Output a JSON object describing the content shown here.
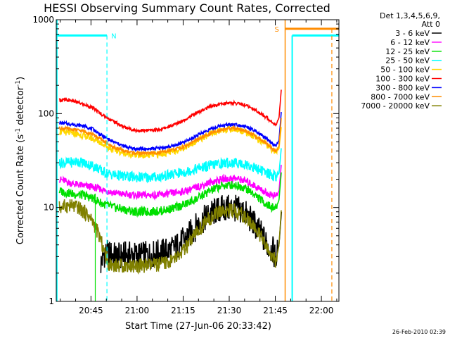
{
  "chart_data": {
    "type": "line",
    "title": "HESSI Observing Summary Count Rates, Corrected",
    "xlabel": "Start Time (27-Jun-06 20:33:42)",
    "ylabel_prefix": "Corrected Count Rate (s",
    "ylabel_mid": " detector",
    "ylabel_suffix": ")",
    "ylabel_exp": "-1",
    "x_axis": {
      "unit": "minutes after 20:33:42",
      "range": [
        0,
        92.0
      ]
    },
    "y_axis": {
      "scale": "log",
      "range": [
        1,
        1000
      ]
    },
    "x_ticks": [
      {
        "label": "20:45",
        "x": 11.3
      },
      {
        "label": "21:00",
        "x": 26.3
      },
      {
        "label": "21:15",
        "x": 41.3
      },
      {
        "label": "21:30",
        "x": 56.3
      },
      {
        "label": "21:45",
        "x": 71.3
      },
      {
        "label": "22:00",
        "x": 86.3
      }
    ],
    "y_ticks": [
      {
        "label": "1",
        "y": 1
      },
      {
        "label": "10",
        "y": 10
      },
      {
        "label": "100",
        "y": 100
      },
      {
        "label": "1000",
        "y": 1000
      }
    ],
    "legend_header": [
      "Det 1,3,4,5,6,9,",
      "Att 0"
    ],
    "series": [
      {
        "name": "3 - 6 keV",
        "color": "#000000",
        "x": [
          14.5,
          15.5,
          17,
          20,
          23,
          26,
          30,
          34,
          38,
          42,
          46,
          50,
          54,
          58,
          61,
          64,
          67,
          69,
          70.5,
          71.5,
          72.5,
          73.3
        ],
        "y": [
          2.5,
          3.2,
          3.2,
          3.0,
          3.1,
          3.1,
          3.1,
          3.3,
          3.6,
          4.6,
          6.5,
          8.5,
          9.7,
          9.8,
          9.0,
          7.0,
          5.0,
          3.8,
          3.5,
          2.8,
          4.0,
          9.0
        ]
      },
      {
        "name": "6 - 12 keV",
        "color": "#ff00ff",
        "x": [
          1,
          5,
          9,
          12,
          15,
          18,
          22,
          26,
          30,
          34,
          38,
          42,
          46,
          50,
          54,
          58,
          61,
          64,
          67,
          69,
          70.5,
          71.5,
          72.5,
          73.3
        ],
        "y": [
          20,
          18,
          17,
          16.5,
          15.5,
          14.5,
          13.8,
          13.5,
          13.5,
          13.7,
          14.2,
          15,
          16.5,
          18.5,
          20,
          20.5,
          19.5,
          17.5,
          15.2,
          14,
          13.5,
          13.2,
          15,
          30
        ]
      },
      {
        "name": "12 - 25 keV",
        "color": "#00e000",
        "x": [
          1,
          5,
          9,
          12,
          15,
          18,
          22,
          26,
          30,
          34,
          38,
          42,
          46,
          50,
          54,
          58,
          61,
          64,
          67,
          69,
          70.5,
          71.5,
          72.5,
          73.3
        ],
        "y": [
          15,
          14,
          13.5,
          12.5,
          11.0,
          10.2,
          9.5,
          9.0,
          9.0,
          9.2,
          9.8,
          10.8,
          12.5,
          15,
          17,
          17.5,
          16.5,
          14.2,
          11.8,
          10.5,
          10.0,
          9.8,
          12,
          25
        ]
      },
      {
        "name": "25 - 50 keV",
        "color": "#00ffff",
        "x": [
          1,
          4,
          7,
          10,
          13,
          15,
          18,
          22,
          26,
          30,
          34,
          38,
          42,
          46,
          50,
          54,
          58,
          61,
          64,
          67,
          69,
          70.5,
          71.5,
          72.5,
          73.3
        ],
        "y": [
          30,
          30,
          31,
          29,
          27,
          24,
          22.5,
          21.5,
          21,
          21,
          21.3,
          22.5,
          24,
          26,
          28,
          29.5,
          30,
          29,
          27,
          24.5,
          23,
          22,
          21.5,
          23,
          45
        ]
      },
      {
        "name": "50 - 100 keV",
        "color": "#ffd700",
        "x": [
          1,
          5,
          9,
          12,
          15,
          18,
          22,
          26,
          30,
          34,
          38,
          42,
          46,
          50,
          54,
          58,
          61,
          64,
          67,
          69,
          70.5,
          71.5,
          72.5,
          73.3
        ],
        "y": [
          64,
          62,
          58,
          54,
          48,
          42,
          38,
          36,
          36,
          37,
          39.5,
          44,
          52,
          60,
          67,
          68,
          65,
          58,
          50,
          45,
          41,
          39.5,
          42,
          75
        ]
      },
      {
        "name": "100 - 300 keV",
        "color": "#ff0000",
        "x": [
          1,
          5,
          9,
          12,
          15,
          18,
          22,
          26,
          30,
          34,
          38,
          42,
          46,
          50,
          54,
          58,
          61,
          64,
          67,
          69,
          70.5,
          71.5,
          72.5,
          73.3
        ],
        "y": [
          140,
          138,
          125,
          115,
          97,
          85,
          72,
          66,
          66,
          68,
          75,
          87,
          103,
          118,
          128,
          130,
          125,
          113,
          98,
          88,
          80,
          76,
          90,
          190
        ]
      },
      {
        "name": "300 - 800 keV",
        "color": "#0000ff",
        "x": [
          1,
          5,
          9,
          12,
          15,
          18,
          22,
          26,
          30,
          34,
          38,
          42,
          46,
          50,
          54,
          58,
          61,
          64,
          67,
          69,
          70.5,
          71.5,
          72.5,
          73.3
        ],
        "y": [
          80,
          77,
          74,
          68,
          58,
          51,
          45,
          42,
          42,
          43,
          45,
          50,
          59,
          68,
          75,
          77,
          74,
          67,
          58,
          52,
          47,
          45,
          52,
          110
        ]
      },
      {
        "name": "800 - 7000 keV",
        "color": "#ff8c00",
        "x": [
          1,
          5,
          9,
          12,
          15,
          18,
          22,
          26,
          30,
          34,
          38,
          42,
          46,
          50,
          54,
          58,
          61,
          64,
          67,
          69,
          70.5,
          71.5,
          72.5,
          73.3
        ],
        "y": [
          70,
          68,
          65,
          60,
          52,
          45,
          40,
          38,
          38,
          38.5,
          41,
          45,
          53,
          61,
          68,
          70,
          67,
          60,
          52,
          46,
          42,
          40,
          45,
          95
        ]
      },
      {
        "name": "7000 - 20000 keV",
        "color": "#808000",
        "x": [
          1,
          4,
          7,
          10,
          12,
          14,
          15.5,
          17,
          20,
          23,
          26,
          30,
          34,
          38,
          42,
          46,
          50,
          54,
          58,
          61,
          64,
          67,
          69,
          70.5,
          71.5,
          72.5,
          73.3
        ],
        "y": [
          10,
          10.5,
          10,
          8.5,
          7,
          5.0,
          3.5,
          2.5,
          2.4,
          2.4,
          2.4,
          2.4,
          2.5,
          2.7,
          3.6,
          5.5,
          7.8,
          9.2,
          9.3,
          8.2,
          6.5,
          4.6,
          3.4,
          3.0,
          2.6,
          4.0,
          10
        ]
      }
    ],
    "markers": [
      {
        "label": "N",
        "color": "#00ffff",
        "x": 16.5
      },
      {
        "label": "S",
        "color": "#ff8c00",
        "x": 74.5
      }
    ],
    "footer_date": "26-Feb-2010 02:39"
  }
}
